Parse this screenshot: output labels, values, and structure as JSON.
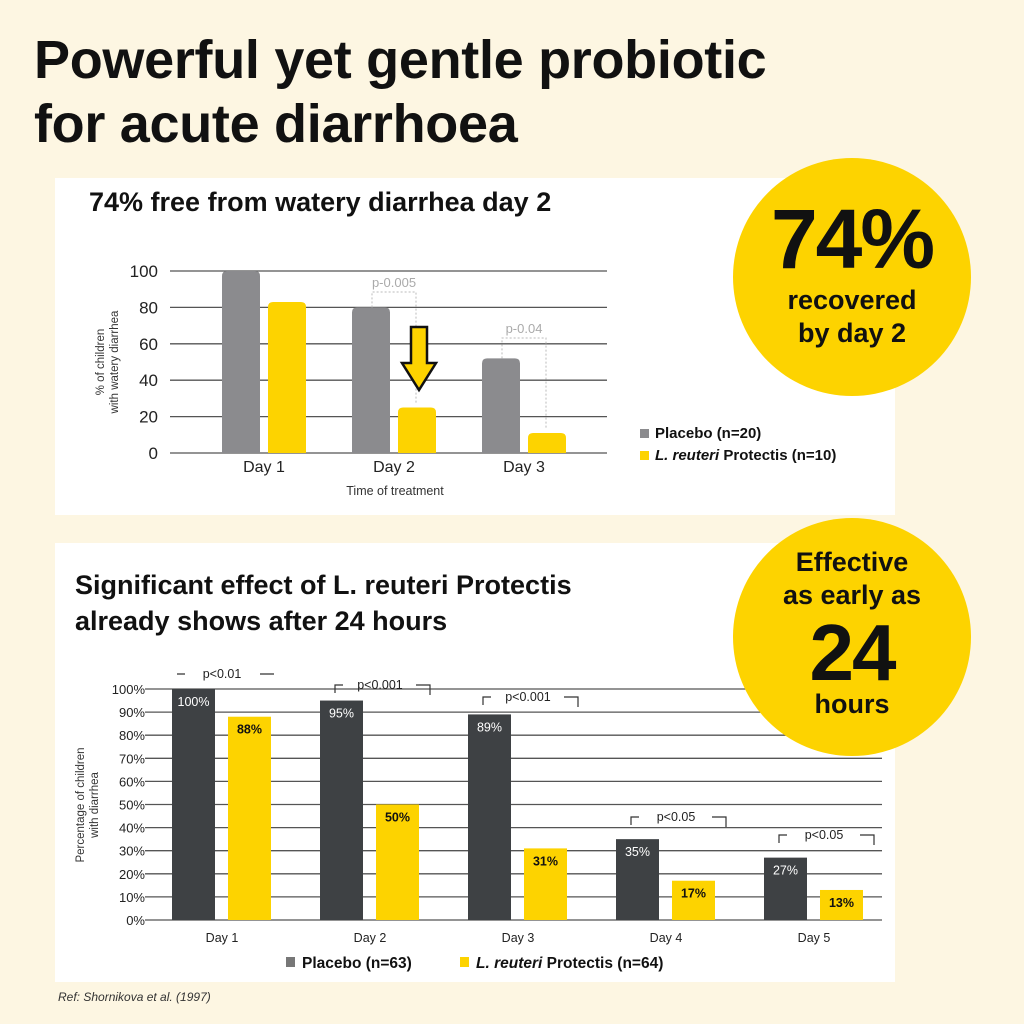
{
  "headline": [
    "Powerful yet gentle probiotic",
    "for acute diarrhoea"
  ],
  "colors": {
    "background": "#fdf6e2",
    "yellow": "#fdd300",
    "gray": "#8b8b8e",
    "dark": "#3e4144"
  },
  "badge1": {
    "big": "74%",
    "line1": "recovered",
    "line2": "by day 2"
  },
  "badge2": {
    "line1": "Effective",
    "line2": "as early as",
    "big": "24",
    "line3": "hours"
  },
  "reference": "Ref: Shornikova et al. (1997)",
  "chart_data": [
    {
      "type": "bar",
      "title": "74% free from watery diarrhea day 2",
      "xlabel": "Time of treatment",
      "ylabel": [
        "% of children",
        "with watery diarrhea"
      ],
      "ylim": [
        0,
        100
      ],
      "yticks": [
        "0",
        "20",
        "40",
        "60",
        "80",
        "100"
      ],
      "categories": [
        "Day 1",
        "Day 2",
        "Day 3"
      ],
      "series": [
        {
          "name": "Placebo (n=20)",
          "values": [
            100,
            80,
            52
          ]
        },
        {
          "name_italic": "L. reuteri",
          "name": "Protectis (n=10)",
          "values": [
            83,
            25,
            11
          ]
        }
      ],
      "annotations": [
        {
          "category": "Day 2",
          "text": "p-0.005"
        },
        {
          "category": "Day 3",
          "text": "p-0.04"
        }
      ],
      "legend": "bottom-right"
    },
    {
      "type": "bar",
      "title": [
        "Significant effect of L. reuteri Protectis",
        "already shows after 24 hours"
      ],
      "xlabel": "",
      "ylabel": [
        "Percentage of children",
        "with diarrhea"
      ],
      "ylim": [
        0,
        100
      ],
      "yticks": [
        "0%",
        "10%",
        "20%",
        "30%",
        "40%",
        "50%",
        "60%",
        "70%",
        "80%",
        "90%",
        "100%"
      ],
      "categories": [
        "Day 1",
        "Day 2",
        "Day 3",
        "Day 4",
        "Day 5"
      ],
      "series": [
        {
          "name": "Placebo (n=63)",
          "values": [
            100,
            95,
            89,
            35,
            27
          ],
          "labels": [
            "100%",
            "95%",
            "89%",
            "35%",
            "27%"
          ]
        },
        {
          "name_italic": "L. reuteri",
          "name": "Protectis (n=64)",
          "values": [
            88,
            50,
            31,
            17,
            13
          ],
          "labels": [
            "88%",
            "50%",
            "31%",
            "17%",
            "13%"
          ]
        }
      ],
      "annotations": [
        {
          "category": "Day 1",
          "text": "p<0.01"
        },
        {
          "category": "Day 2",
          "text": "p<0.001"
        },
        {
          "category": "Day 3",
          "text": "p<0.001"
        },
        {
          "category": "Day 4",
          "text": "p<0.05"
        },
        {
          "category": "Day 5",
          "text": "p<0.05"
        }
      ],
      "legend": "bottom"
    }
  ]
}
